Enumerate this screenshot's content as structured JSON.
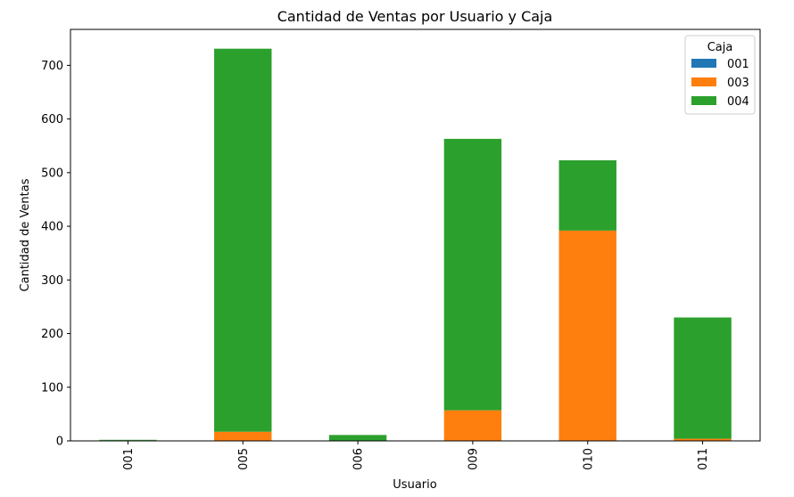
{
  "chart_data": {
    "type": "bar",
    "stacked": true,
    "title": "Cantidad de Ventas por Usuario y Caja",
    "xlabel": "Usuario",
    "ylabel": "Cantidad de Ventas",
    "categories": [
      "001",
      "005",
      "006",
      "009",
      "010",
      "011"
    ],
    "series": [
      {
        "name": "001",
        "color": "#1f77b4",
        "values": [
          1,
          0,
          0,
          0,
          0,
          0
        ]
      },
      {
        "name": "003",
        "color": "#ff7f0e",
        "values": [
          0,
          17,
          0,
          57,
          392,
          4
        ]
      },
      {
        "name": "004",
        "color": "#2ca02c",
        "values": [
          1,
          714,
          11,
          506,
          131,
          226
        ]
      }
    ],
    "ylim": [
      0,
      767
    ],
    "yticks": [
      0,
      100,
      200,
      300,
      400,
      500,
      600,
      700
    ],
    "grid": false,
    "legend": {
      "title": "Caja",
      "position": "top-right"
    }
  }
}
